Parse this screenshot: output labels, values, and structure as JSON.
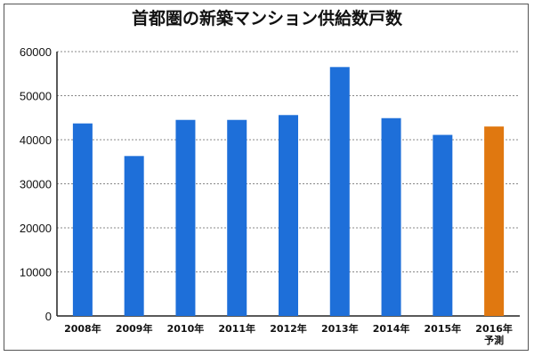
{
  "chart_data": {
    "type": "bar",
    "title": "首都圏の新築マンション供給数戸数",
    "categories": [
      "2008年",
      "2009年",
      "2010年",
      "2011年",
      "2012年",
      "2013年",
      "2014年",
      "2015年",
      "2016年\n予測"
    ],
    "values": [
      43700,
      36300,
      44500,
      44500,
      45600,
      56500,
      44900,
      41100,
      43000
    ],
    "ylim": [
      0,
      60000
    ],
    "yticks": [
      0,
      10000,
      20000,
      30000,
      40000,
      50000,
      60000
    ],
    "grid": true,
    "colors": {
      "bar": "#1e6fd9",
      "highlight": "#e07810",
      "grid": "#888888"
    },
    "highlight_index": 8
  }
}
